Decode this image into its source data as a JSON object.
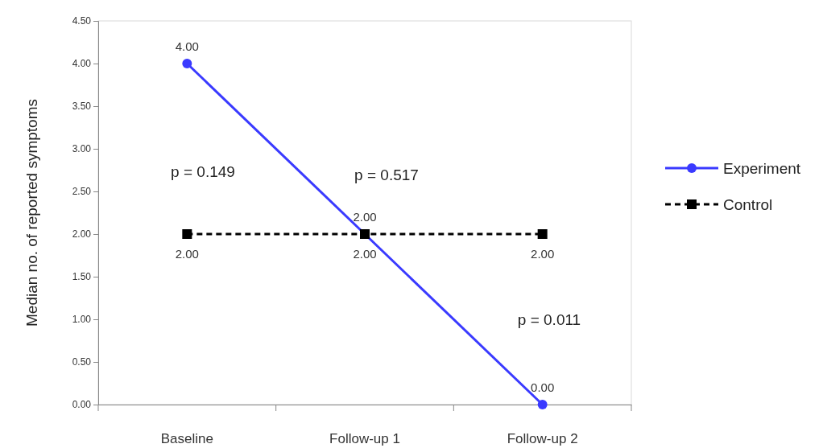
{
  "chart_data": {
    "type": "line",
    "ylabel": "Median no. of reported symptoms",
    "categories": [
      "Baseline",
      "Follow-up 1",
      "Follow-up 2"
    ],
    "ylim": [
      0,
      4.5
    ],
    "yticks": [
      {
        "value": 0,
        "label": "0.00"
      },
      {
        "value": 0.5,
        "label": "0.50"
      },
      {
        "value": 1,
        "label": "1.00"
      },
      {
        "value": 1.5,
        "label": "1.50"
      },
      {
        "value": 2,
        "label": "2.00"
      },
      {
        "value": 2.5,
        "label": "2.50"
      },
      {
        "value": 3,
        "label": "3.00"
      },
      {
        "value": 3.5,
        "label": "3.50"
      },
      {
        "value": 4,
        "label": "4.00"
      },
      {
        "value": 4.5,
        "label": "4.50"
      }
    ],
    "series": [
      {
        "name": "Experiment",
        "color": "#3a3aff",
        "values": [
          4,
          2,
          0
        ],
        "value_labels": [
          "4.00",
          "2.00",
          "0.00"
        ],
        "marker": "circle",
        "line_style": "solid"
      },
      {
        "name": "Control",
        "color": "#000000",
        "values": [
          2,
          2,
          2
        ],
        "value_labels": [
          "2.00",
          "2.00",
          "2.00"
        ],
        "marker": "square",
        "line_style": "dashed"
      }
    ],
    "annotations": [
      "p = 0.149",
      "p = 0.517",
      "p = 0.011"
    ],
    "legend": "right",
    "grid": false
  }
}
